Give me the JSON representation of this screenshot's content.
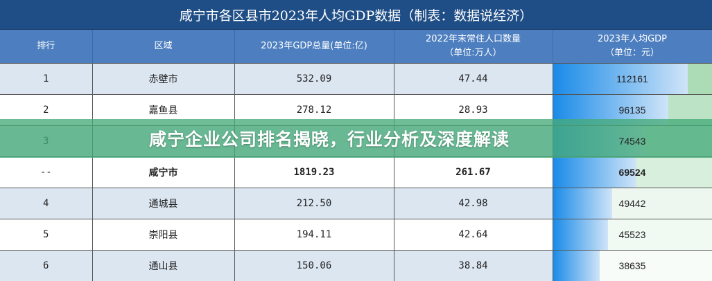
{
  "title": "咸宁市各区县市2023年人均GDP数据（制表：数据说经济）",
  "headers": [
    "排行",
    "区域",
    "2023年GDP总量(单位:亿)",
    "2022年末常住人口数量\n（单位:万人）",
    "2023年人均GDP\n（单位：元）"
  ],
  "rows": [
    {
      "rank": "1",
      "region": "赤壁市",
      "gdp": "532.09",
      "pop": "47.44",
      "per_capita": "112161",
      "value": 112161
    },
    {
      "rank": "2",
      "region": "嘉鱼县",
      "gdp": "278.12",
      "pop": "28.93",
      "per_capita": "96135",
      "value": 96135
    },
    {
      "rank": "3",
      "region": "",
      "gdp": "",
      "pop": "",
      "per_capita": "74543",
      "value": 74543
    },
    {
      "rank": "--",
      "region": "咸宁市",
      "gdp": "1819.23",
      "pop": "261.67",
      "per_capita": "69524",
      "value": 69524,
      "bold": true
    },
    {
      "rank": "4",
      "region": "通城县",
      "gdp": "212.50",
      "pop": "42.98",
      "per_capita": "49442",
      "value": 49442
    },
    {
      "rank": "5",
      "region": "崇阳县",
      "gdp": "194.11",
      "pop": "42.64",
      "per_capita": "45523",
      "value": 45523
    },
    {
      "rank": "6",
      "region": "通山县",
      "gdp": "150.06",
      "pop": "38.84",
      "per_capita": "38635",
      "value": 38635
    }
  ],
  "banner": "咸宁企业公司排名揭晓，行业分析及深度解读",
  "colors": {
    "title_bg": "#1f4e86",
    "header_bg": "#4d7fc0",
    "bar_blue": "#1a8be8",
    "heat_green": "#7fc98f",
    "banner": "#46aa78"
  }
}
